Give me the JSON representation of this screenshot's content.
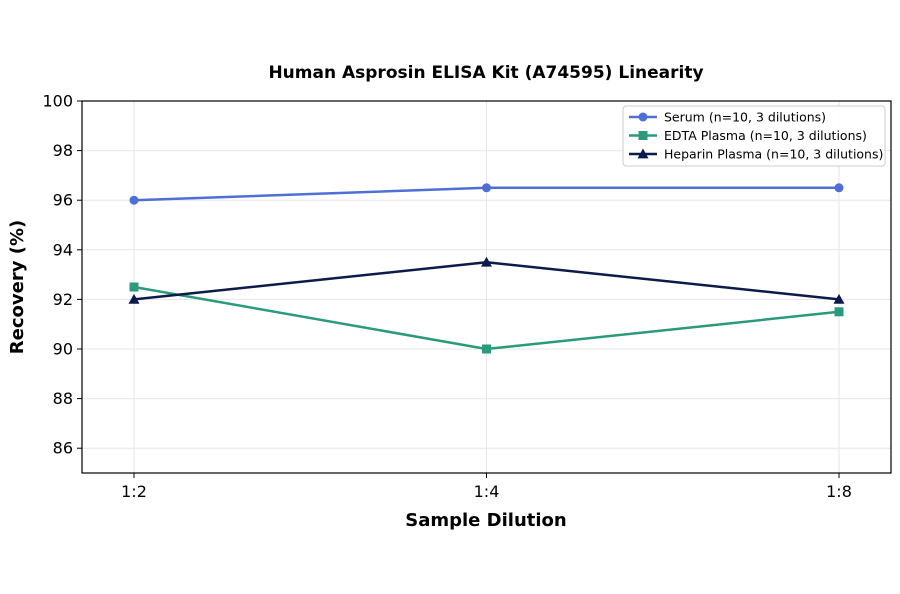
{
  "chart_data": {
    "type": "line",
    "title": "Human Asprosin ELISA Kit (A74595) Linearity",
    "xlabel": "Sample Dilution",
    "ylabel": "Recovery (%)",
    "categories": [
      "1:2",
      "1:4",
      "1:8"
    ],
    "ylim": [
      85,
      100
    ],
    "yticks": [
      86,
      88,
      90,
      92,
      94,
      96,
      98,
      100
    ],
    "grid": true,
    "legend_position": "top-right",
    "series": [
      {
        "name": "Serum (n=10, 3 dilutions)",
        "values": [
          96.0,
          96.5,
          96.5
        ],
        "color": "#4f6fd6",
        "marker": "circle"
      },
      {
        "name": "EDTA Plasma (n=10, 3 dilutions)",
        "values": [
          92.5,
          90.0,
          91.5
        ],
        "color": "#2a9a7c",
        "marker": "square"
      },
      {
        "name": "Heparin Plasma (n=10, 3 dilutions)",
        "values": [
          92.0,
          93.5,
          92.0
        ],
        "color": "#0d1b4a",
        "marker": "triangle"
      }
    ]
  }
}
